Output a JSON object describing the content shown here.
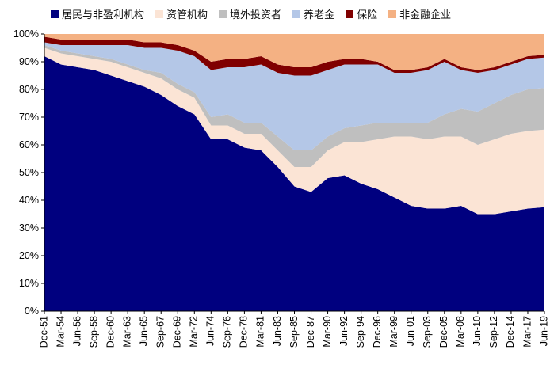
{
  "chart_data": {
    "type": "area",
    "stacked": true,
    "title": "",
    "xlabel": "",
    "ylabel": "",
    "ylim": [
      0,
      100
    ],
    "y_ticks": [
      "0%",
      "10%",
      "20%",
      "30%",
      "40%",
      "50%",
      "60%",
      "70%",
      "80%",
      "90%",
      "100%"
    ],
    "grid": false,
    "legend_position": "top",
    "x": [
      "Dec-51",
      "Mar-54",
      "Jun-56",
      "Sep-58",
      "Dec-60",
      "Mar-63",
      "Jun-65",
      "Sep-67",
      "Dec-69",
      "Mar-72",
      "Jun-74",
      "Sep-76",
      "Dec-78",
      "Mar-81",
      "Jun-83",
      "Sep-85",
      "Dec-87",
      "Mar-90",
      "Jun-92",
      "Sep-94",
      "Dec-96",
      "Mar-99",
      "Jun-01",
      "Sep-03",
      "Dec-05",
      "Mar-08",
      "Jun-10",
      "Sep-12",
      "Dec-14",
      "Mar-17",
      "Jun-19"
    ],
    "series": [
      {
        "name": "居民与非盈利机构",
        "color": "#00007f",
        "values": [
          92,
          89,
          88,
          87,
          85,
          83,
          81,
          78,
          74,
          71,
          62,
          62,
          59,
          58,
          52,
          45,
          43,
          48,
          49,
          46,
          44,
          41,
          38,
          37,
          37,
          38,
          35,
          35,
          36,
          37,
          37.5
        ]
      },
      {
        "name": "资管机构",
        "color": "#fbe4d5",
        "values": [
          3,
          4,
          4,
          4,
          5,
          5,
          5,
          6,
          6,
          6,
          5,
          5,
          5,
          6,
          6,
          7,
          9,
          10,
          12,
          15,
          18,
          22,
          25,
          25,
          26,
          25,
          25,
          27,
          28,
          28,
          28
        ]
      },
      {
        "name": "境外投资者",
        "color": "#bfbfbf",
        "values": [
          1,
          1,
          1,
          1,
          1,
          1,
          1,
          2,
          2,
          2,
          3,
          4,
          4,
          4,
          5,
          6,
          6,
          5,
          5,
          6,
          6,
          5,
          5,
          6,
          8,
          10,
          12,
          13,
          14,
          15,
          15
        ]
      },
      {
        "name": "养老金",
        "color": "#b4c7e7",
        "values": [
          1,
          2,
          3,
          4,
          5,
          7,
          8,
          9,
          12,
          13,
          17,
          17,
          20,
          21,
          23,
          27,
          27,
          24,
          23,
          22,
          21,
          18,
          18,
          19,
          19,
          14,
          14,
          12,
          11,
          11,
          11
        ]
      },
      {
        "name": "保险",
        "color": "#800000",
        "values": [
          2,
          2,
          2,
          2,
          2,
          2,
          2,
          2,
          2,
          2,
          3,
          3,
          3,
          3,
          3,
          3,
          3,
          3,
          2,
          2,
          1,
          1,
          1,
          1,
          1,
          1,
          1,
          1,
          1,
          1,
          1
        ]
      },
      {
        "name": "非金融企业",
        "color": "#f4b183",
        "values": [
          1,
          2,
          2,
          2,
          2,
          2,
          3,
          3,
          4,
          6,
          10,
          9,
          9,
          8,
          11,
          12,
          12,
          10,
          9,
          9,
          10,
          13,
          13,
          12,
          9,
          12,
          13,
          12,
          10,
          8,
          7.5
        ]
      }
    ]
  }
}
